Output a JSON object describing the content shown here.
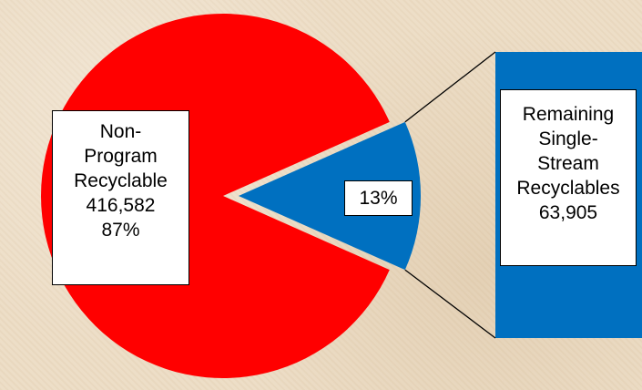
{
  "chart_data": {
    "type": "pie",
    "main_pie": {
      "slices": [
        {
          "label_lines": [
            "Non-",
            "Program",
            "Recyclable",
            "416,582",
            "87%"
          ],
          "value": 416582,
          "percent": 87,
          "color": "#ff0000"
        },
        {
          "label_lines": [
            "13%"
          ],
          "value": 63905,
          "percent": 13,
          "color": "#0070c0"
        }
      ]
    },
    "breakout": {
      "label_lines": [
        "Remaining",
        "Single-",
        "Stream",
        "Recyclables",
        "63,905"
      ],
      "value": 63905,
      "color": "#0070c0"
    }
  }
}
